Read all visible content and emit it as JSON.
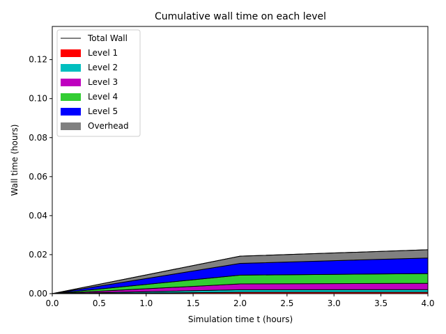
{
  "chart_data": {
    "type": "area",
    "title": "Cumulative wall time on each level",
    "xlabel": "Simulation time t (hours)",
    "ylabel": "Wall time (hours)",
    "xlim": [
      0.0,
      4.0
    ],
    "ylim": [
      0.0,
      0.137
    ],
    "x_ticks": [
      "0.0",
      "0.5",
      "1.0",
      "1.5",
      "2.0",
      "2.5",
      "3.0",
      "3.5",
      "4.0"
    ],
    "y_ticks": [
      "0.00",
      "0.02",
      "0.04",
      "0.06",
      "0.08",
      "0.10",
      "0.12"
    ],
    "x": [
      0.0,
      2.0,
      4.0
    ],
    "stacked": true,
    "series": [
      {
        "name": "Level 1",
        "color": "#ff0000",
        "values": [
          0.0,
          0.0007,
          0.0007
        ]
      },
      {
        "name": "Level 2",
        "color": "#00bfbf",
        "values": [
          0.0,
          0.0013,
          0.0014
        ]
      },
      {
        "name": "Level 3",
        "color": "#bf00bf",
        "values": [
          0.0,
          0.003,
          0.0032
        ]
      },
      {
        "name": "Level 4",
        "color": "#32cd32",
        "values": [
          0.0,
          0.0045,
          0.005
        ]
      },
      {
        "name": "Level 5",
        "color": "#0000ff",
        "values": [
          0.0,
          0.006,
          0.008
        ]
      },
      {
        "name": "Overhead",
        "color": "#808080",
        "values": [
          0.0,
          0.0037,
          0.0042
        ]
      }
    ],
    "total_line": {
      "name": "Total Wall",
      "color": "#000000"
    },
    "legend": {
      "position": "upper-left",
      "entries": [
        "Total Wall",
        "Level 1",
        "Level 2",
        "Level 3",
        "Level 4",
        "Level 5",
        "Overhead"
      ]
    },
    "grid": false
  }
}
